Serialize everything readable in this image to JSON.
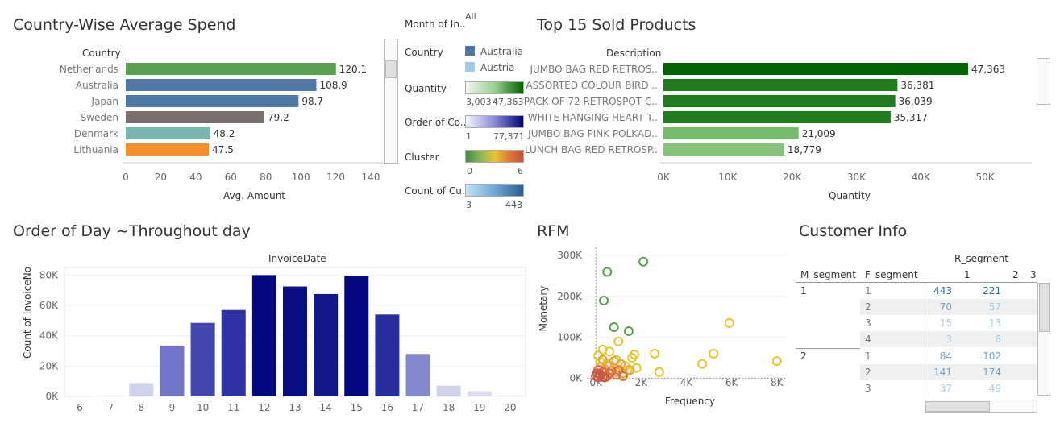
{
  "country_panel": {
    "title": "Country-Wise Average Spend",
    "row_header": "Country",
    "axis_title": "Avg. Amount",
    "ticks": [
      "0",
      "20",
      "40",
      "60",
      "80",
      "100",
      "120",
      "140"
    ]
  },
  "products_panel": {
    "title": "Top 15 Sold Products",
    "row_header": "Description",
    "axis_title": "Quantity",
    "ticks": [
      "0K",
      "10K",
      "20K",
      "30K",
      "40K",
      "50K"
    ]
  },
  "day_panel": {
    "title": "Order of Day ~Throughout day",
    "column_header": "InvoiceDate",
    "y_axis_title": "Count of InvoiceNo",
    "y_ticks": [
      "80K",
      "60K",
      "40K",
      "20K",
      "0K"
    ]
  },
  "rfm_panel": {
    "title": "RFM",
    "x_axis_title": "Frequency",
    "y_axis_title": "Monetary",
    "x_ticks": [
      "0K",
      "2K",
      "4K",
      "6K",
      "8K"
    ],
    "y_ticks": [
      "300K",
      "200K",
      "100K",
      "0K"
    ]
  },
  "legends": {
    "month": {
      "title": "Month of In..",
      "value": "All"
    },
    "country": {
      "title": "Country",
      "items": [
        {
          "label": "Australia",
          "color": "#4e79a7"
        },
        {
          "label": "Austria",
          "color": "#a0cbe8"
        }
      ]
    },
    "quantity": {
      "title": "Quantity",
      "min": "3,003",
      "max": "47,363"
    },
    "order_of_co": {
      "title": "Order of Co..",
      "min": "1",
      "max": "77,371"
    },
    "cluster": {
      "title": "Cluster",
      "min": "0",
      "max": "6"
    },
    "count_of_cu": {
      "title": "Count of Cu..",
      "min": "3",
      "max": "443"
    }
  },
  "customer_info": {
    "title": "Customer Info",
    "col_group_header": "R_segment",
    "row_header_1": "M_segment",
    "row_header_2": "F_segment",
    "r_columns": [
      "1",
      "2",
      "3"
    ],
    "m_groups": [
      {
        "m": "1",
        "rows": [
          {
            "f": "1",
            "v1": "443",
            "v2": "221"
          },
          {
            "f": "2",
            "v1": "70",
            "v2": "57"
          },
          {
            "f": "3",
            "v1": "15",
            "v2": "13"
          },
          {
            "f": "4",
            "v1": "3",
            "v2": "8"
          }
        ]
      },
      {
        "m": "2",
        "rows": [
          {
            "f": "1",
            "v1": "84",
            "v2": "102"
          },
          {
            "f": "2",
            "v1": "141",
            "v2": "174"
          },
          {
            "f": "3",
            "v1": "37",
            "v2": "49"
          }
        ]
      }
    ]
  },
  "chart_data": [
    {
      "type": "bar",
      "orientation": "horizontal",
      "title": "Country-Wise Average Spend",
      "xlabel": "Avg. Amount",
      "ylabel": "Country",
      "xlim": [
        0,
        140
      ],
      "categories": [
        "Netherlands",
        "Australia",
        "Japan",
        "Sweden",
        "Denmark",
        "Lithuania"
      ],
      "values": [
        120.1,
        108.9,
        98.7,
        79.2,
        48.2,
        47.5
      ],
      "labels": [
        "120.1",
        "108.9",
        "98.7",
        "79.2",
        "48.2",
        "47.5"
      ],
      "colors": [
        "#59a14f",
        "#4e79a7",
        "#4e79a7",
        "#79706e",
        "#76b7b2",
        "#f28e2b"
      ]
    },
    {
      "type": "bar",
      "orientation": "horizontal",
      "title": "Top 15 Sold Products",
      "xlabel": "Quantity",
      "ylabel": "Description",
      "xlim": [
        0,
        55000
      ],
      "categories": [
        "JUMBO BAG RED RETROS..",
        "ASSORTED COLOUR BIRD ..",
        "PACK OF 72 RETROSPOT C..",
        "WHITE HANGING HEART T..",
        "JUMBO BAG PINK POLKAD..",
        "LUNCH BAG RED RETROSP.."
      ],
      "values": [
        47363,
        36381,
        36039,
        35317,
        21009,
        18779
      ],
      "labels": [
        "47,363",
        "36,381",
        "36,039",
        "35,317",
        "21,009",
        "18,779"
      ],
      "colors": [
        "#006400",
        "#1e7b1e",
        "#1e7b1e",
        "#1e7b1e",
        "#74bb6c",
        "#86c47c"
      ]
    },
    {
      "type": "bar",
      "title": "Order of Day ~Throughout day",
      "xlabel": "InvoiceDate",
      "ylabel": "Count of InvoiceNo",
      "ylim": [
        0,
        85000
      ],
      "categories": [
        "6",
        "7",
        "8",
        "9",
        "10",
        "11",
        "12",
        "13",
        "14",
        "15",
        "16",
        "17",
        "18",
        "19",
        "20"
      ],
      "values": [
        0,
        400,
        8800,
        33500,
        48500,
        57000,
        80000,
        72500,
        67500,
        79500,
        54000,
        28000,
        7000,
        3500,
        800
      ],
      "colors": [
        "#eef0f8",
        "#e7e9f5",
        "#cfd2ea",
        "#7275c7",
        "#4246ad",
        "#2e32a4",
        "#04087f",
        "#0a0e83",
        "#12178b",
        "#04087f",
        "#282d9e",
        "#8487cb",
        "#d0d2ea",
        "#dcdeef",
        "#e9eaf5"
      ]
    },
    {
      "type": "scatter",
      "title": "RFM",
      "xlabel": "Frequency",
      "ylabel": "Monetary",
      "xlim": [
        -400,
        8400
      ],
      "ylim": [
        -15000,
        320000
      ],
      "series": [
        {
          "color": "#59a14f",
          "points": [
            [
              500,
              260000
            ],
            [
              2100,
              285000
            ],
            [
              350,
              190000
            ],
            [
              800,
              125000
            ],
            [
              1450,
              115000
            ]
          ]
        },
        {
          "color": "#e6c62f",
          "points": [
            [
              5900,
              135000
            ],
            [
              1000,
              90000
            ],
            [
              2600,
              60000
            ],
            [
              5200,
              60000
            ],
            [
              8000,
              42000
            ],
            [
              4700,
              35000
            ],
            [
              2800,
              15000
            ],
            [
              1700,
              58000
            ],
            [
              1600,
              50000
            ],
            [
              1400,
              20000
            ],
            [
              300,
              70000
            ],
            [
              600,
              65000
            ],
            [
              100,
              55000
            ],
            [
              900,
              45000
            ],
            [
              1300,
              30000
            ],
            [
              1800,
              25000
            ],
            [
              500,
              35000
            ],
            [
              200,
              40000
            ]
          ]
        },
        {
          "color": "#e8a43c",
          "points": [
            [
              800,
              42000
            ],
            [
              1100,
              35000
            ],
            [
              300,
              45000
            ],
            [
              600,
              30000
            ],
            [
              1500,
              20000
            ],
            [
              900,
              15000
            ],
            [
              200,
              28000
            ],
            [
              1200,
              12000
            ],
            [
              400,
              22000
            ]
          ]
        },
        {
          "color": "#e06c3c",
          "points": [
            [
              100,
              20000
            ],
            [
              300,
              15000
            ],
            [
              600,
              12000
            ],
            [
              900,
              8000
            ],
            [
              200,
              8000
            ],
            [
              500,
              5000
            ],
            [
              1200,
              5000
            ],
            [
              700,
              18000
            ],
            [
              1000,
              20000
            ]
          ]
        },
        {
          "color": "#c65a43",
          "points": [
            [
              0,
              5000
            ],
            [
              100,
              2000
            ],
            [
              200,
              6000
            ],
            [
              300,
              3000
            ],
            [
              150,
              10000
            ],
            [
              400,
              2000
            ],
            [
              50,
              12000
            ]
          ]
        }
      ]
    }
  ]
}
